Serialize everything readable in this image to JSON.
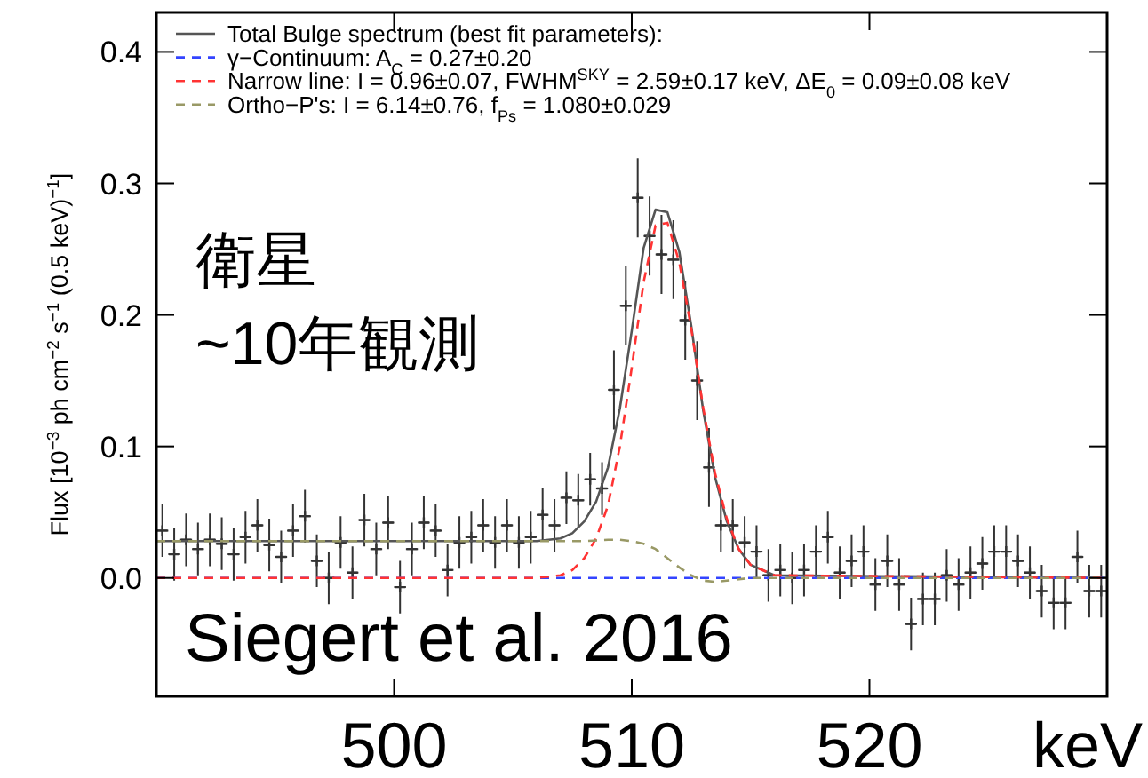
{
  "chart_data": {
    "type": "scatter",
    "xlabel": "keV",
    "ylabel": "Flux [10$^{−3}$ ph cm$^{−2}$ s$^{−1}$ (0.5 keV)$^{−1}$]",
    "xlim": [
      490,
      530
    ],
    "xticks": [
      500,
      510,
      520
    ],
    "ylim": [
      -0.09,
      0.43
    ],
    "yticks": [
      {
        "value": 0,
        "label": "0.0"
      },
      {
        "value": 0.1,
        "label": "0.1"
      },
      {
        "value": 0.2,
        "label": "0.2"
      },
      {
        "value": 0.3,
        "label": "0.3"
      },
      {
        "value": 0.4,
        "label": "0.4"
      }
    ],
    "legend": "top left",
    "grid": false,
    "annotations": [
      "衛星",
      "~10年観測",
      "Siegert et al. 2016"
    ],
    "series": [
      {
        "type": "scatter",
        "color": "#333333",
        "marker": "cross",
        "x": [
          490.25,
          490.75,
          491.25,
          491.75,
          492.25,
          492.75,
          493.25,
          493.75,
          494.25,
          494.75,
          495.25,
          495.75,
          496.25,
          496.75,
          497.25,
          497.75,
          498.25,
          498.75,
          499.25,
          499.75,
          500.25,
          500.75,
          501.25,
          501.75,
          502.25,
          502.75,
          503.25,
          503.75,
          504.25,
          504.75,
          505.25,
          505.75,
          506.25,
          506.75,
          507.25,
          507.75,
          508.25,
          508.75,
          509.25,
          509.75,
          510.25,
          510.75,
          511.25,
          511.75,
          512.25,
          512.75,
          513.25,
          513.75,
          514.25,
          514.75,
          515.25,
          515.75,
          516.25,
          516.75,
          517.25,
          517.75,
          518.25,
          518.75,
          519.25,
          519.75,
          520.25,
          520.75,
          521.25,
          521.75,
          522.25,
          522.75,
          523.25,
          523.75,
          524.25,
          524.75,
          525.25,
          525.75,
          526.25,
          526.75,
          527.25,
          527.75,
          528.25,
          528.75,
          529.25,
          529.75
        ],
        "values": [
          0.036,
          0.018,
          0.029,
          0.022,
          0.029,
          0.026,
          0.018,
          0.031,
          0.04,
          0.025,
          0.016,
          0.036,
          0.047,
          0.013,
          0.0,
          0.027,
          0.004,
          0.044,
          0.022,
          0.042,
          -0.007,
          0.022,
          0.042,
          0.036,
          0.006,
          0.027,
          0.031,
          0.04,
          0.027,
          0.04,
          0.027,
          0.031,
          0.048,
          0.04,
          0.061,
          0.059,
          0.075,
          0.068,
          0.143,
          0.207,
          0.289,
          0.26,
          0.246,
          0.242,
          0.196,
          0.15,
          0.084,
          0.04,
          0.04,
          0.027,
          0.02,
          0.002,
          0.006,
          0.0,
          0.006,
          0.02,
          0.031,
          0.004,
          0.013,
          0.02,
          -0.005,
          0.013,
          -0.005,
          -0.035,
          -0.016,
          -0.016,
          0.002,
          -0.005,
          0.004,
          0.011,
          0.02,
          0.02,
          0.013,
          0.004,
          -0.01,
          -0.019,
          -0.019,
          0.016,
          -0.01,
          -0.01
        ],
        "errors": [
          0.02,
          0.02,
          0.02,
          0.02,
          0.02,
          0.02,
          0.02,
          0.02,
          0.02,
          0.02,
          0.02,
          0.02,
          0.02,
          0.02,
          0.02,
          0.02,
          0.02,
          0.02,
          0.02,
          0.02,
          0.02,
          0.02,
          0.02,
          0.02,
          0.02,
          0.02,
          0.02,
          0.02,
          0.02,
          0.02,
          0.02,
          0.02,
          0.02,
          0.02,
          0.02,
          0.02,
          0.02,
          0.02,
          0.03,
          0.03,
          0.03,
          0.03,
          0.03,
          0.03,
          0.03,
          0.03,
          0.03,
          0.02,
          0.02,
          0.02,
          0.02,
          0.02,
          0.02,
          0.02,
          0.02,
          0.02,
          0.02,
          0.02,
          0.02,
          0.02,
          0.02,
          0.02,
          0.02,
          0.02,
          0.02,
          0.02,
          0.02,
          0.02,
          0.02,
          0.02,
          0.02,
          0.02,
          0.02,
          0.02,
          0.02,
          0.02,
          0.02,
          0.02,
          0.02,
          0.02
        ],
        "xerrors": [
          0.25,
          0.25,
          0.25,
          0.25,
          0.25,
          0.25,
          0.25,
          0.25,
          0.25,
          0.25,
          0.25,
          0.25,
          0.25,
          0.25,
          0.25,
          0.25,
          0.25,
          0.25,
          0.25,
          0.25,
          0.25,
          0.25,
          0.25,
          0.25,
          0.25,
          0.25,
          0.25,
          0.25,
          0.25,
          0.25,
          0.25,
          0.25,
          0.25,
          0.25,
          0.25,
          0.25,
          0.25,
          0.25,
          0.25,
          0.25,
          0.25,
          0.25,
          0.25,
          0.25,
          0.25,
          0.25,
          0.25,
          0.25,
          0.25,
          0.25,
          0.25,
          0.25,
          0.25,
          0.25,
          0.25,
          0.25,
          0.25,
          0.25,
          0.25,
          0.25,
          0.25,
          0.25,
          0.25,
          0.25,
          0.25,
          0.25,
          0.25,
          0.25,
          0.25,
          0.25,
          0.25,
          0.25,
          0.25,
          0.25,
          0.25,
          0.25,
          0.25,
          0.25,
          0.25,
          0.25
        ]
      },
      {
        "type": "line",
        "name": "Total Bulge spectrum (best fit parameters):",
        "color": "#555555",
        "line_style": "solid",
        "x": [
          490,
          506,
          507,
          507.5,
          508,
          508.5,
          509,
          509.5,
          510,
          510.5,
          511,
          511.5,
          512,
          512.5,
          513,
          513.5,
          514,
          514.5,
          515,
          516,
          530
        ],
        "values": [
          0.028,
          0.028,
          0.03,
          0.034,
          0.043,
          0.058,
          0.084,
          0.129,
          0.188,
          0.251,
          0.28,
          0.278,
          0.248,
          0.192,
          0.128,
          0.077,
          0.043,
          0.022,
          0.01,
          0.002,
          0
        ]
      },
      {
        "type": "line",
        "name": "γ−Continuum: A$_{C}$ = 0.27±0.20",
        "color": "#3344ff",
        "line_style": "dashed",
        "x": [
          490,
          530
        ],
        "values": [
          0,
          0
        ]
      },
      {
        "type": "line",
        "name": "Narrow line: I = 0.96±0.07, FWHM$^{SKY}$ = 2.59±0.17 keV, ΔE$_{0}$ =  0.09±0.08 keV",
        "color": "#ff3333",
        "line_style": "dashed",
        "x": [
          490,
          505,
          506,
          507,
          507.5,
          508,
          508.5,
          509,
          509.5,
          510,
          510.5,
          511,
          511.5,
          512,
          512.5,
          513,
          513.5,
          514,
          514.5,
          515,
          516,
          530
        ],
        "values": [
          0,
          0,
          0,
          0.002,
          0.006,
          0.015,
          0.03,
          0.055,
          0.1,
          0.16,
          0.225,
          0.268,
          0.27,
          0.24,
          0.19,
          0.13,
          0.08,
          0.045,
          0.022,
          0.01,
          0.002,
          0
        ]
      },
      {
        "type": "line",
        "name": "Ortho−P's:   I = 6.14±0.76, f$_{Ps}$ = 1.080±0.029",
        "color": "#999966",
        "line_style": "dashed",
        "x": [
          490,
          506,
          508,
          509,
          509.5,
          510,
          510.5,
          511,
          511.5,
          512,
          512.5,
          513,
          513.5,
          514,
          515,
          530
        ],
        "values": [
          0.028,
          0.028,
          0.028,
          0.029,
          0.029,
          0.028,
          0.026,
          0.022,
          0.015,
          0.008,
          0.002,
          -0.002,
          -0.003,
          -0.002,
          0,
          0
        ]
      }
    ]
  }
}
